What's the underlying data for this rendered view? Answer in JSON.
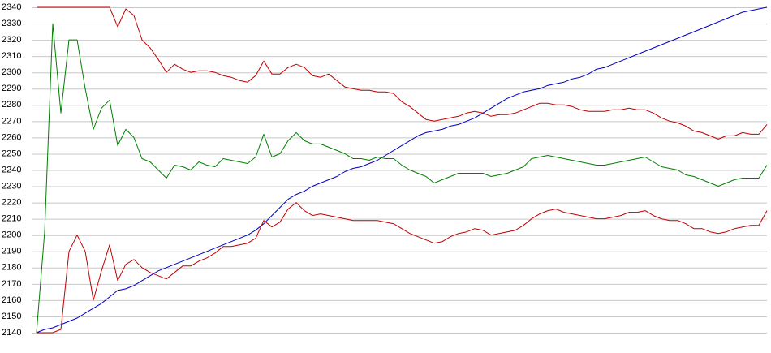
{
  "chart_data": {
    "type": "line",
    "categories": [
      null,
      null,
      null,
      null,
      null,
      null,
      null,
      null,
      null,
      null,
      null,
      null,
      null,
      null,
      null,
      null,
      null,
      null,
      null,
      null,
      null,
      null,
      null,
      null,
      null,
      null,
      null,
      null,
      null,
      null,
      null,
      null,
      null,
      null,
      null,
      null,
      null,
      null,
      null,
      null,
      null,
      null,
      null,
      null,
      null,
      null,
      null,
      null,
      null,
      null,
      null,
      null,
      null,
      null,
      null,
      null,
      null,
      null,
      null,
      null,
      null,
      null,
      null,
      null,
      null,
      null,
      null,
      null,
      null,
      null,
      null,
      null,
      null,
      null,
      null,
      null,
      null,
      null,
      null,
      null,
      null,
      null,
      null,
      null,
      null,
      null,
      null,
      null,
      null,
      null,
      null
    ],
    "series": [
      {
        "color": "#0000c0",
        "values": [
          2140,
          2142,
          2143,
          2145,
          2147,
          2149,
          2152,
          2155,
          2158,
          2162,
          2166,
          2167,
          2169,
          2172,
          2175,
          2178,
          2180,
          2182,
          2184,
          2186,
          2188,
          2190,
          2192,
          2194,
          2196,
          2198,
          2200,
          2203,
          2207,
          2212,
          2217,
          2222,
          2225,
          2227,
          2230,
          2232,
          2234,
          2236,
          2239,
          2241,
          2242,
          2244,
          2246,
          2249,
          2252,
          2255,
          2258,
          2261,
          2263,
          2264,
          2265,
          2267,
          2268,
          2270,
          2272,
          2275,
          2278,
          2281,
          2284,
          2286,
          2288,
          2289,
          2290,
          2292,
          2293,
          2294,
          2296,
          2297,
          2299,
          2302,
          2303,
          2305,
          2307,
          2309,
          2311,
          2313,
          2315,
          2317,
          2319,
          2321,
          2323,
          2325,
          2327,
          2329,
          2331,
          2333,
          2335,
          2337,
          2338,
          2339,
          2340
        ]
      },
      {
        "color": "#008000",
        "values": [
          2140,
          2202,
          2330,
          2275,
          2320,
          2320,
          2290,
          2265,
          2278,
          2283,
          2255,
          2265,
          2260,
          2247,
          2245,
          2240,
          2235,
          2243,
          2242,
          2240,
          2245,
          2243,
          2242,
          2247,
          2246,
          2245,
          2244,
          2248,
          2262,
          2248,
          2250,
          2258,
          2263,
          2258,
          2256,
          2256,
          2254,
          2252,
          2250,
          2247,
          2247,
          2246,
          2248,
          2247,
          2247,
          2243,
          2240,
          2238,
          2236,
          2232,
          2234,
          2236,
          2238,
          2238,
          2238,
          2238,
          2236,
          2237,
          2238,
          2240,
          2242,
          2247,
          2248,
          2249,
          2248,
          2247,
          2246,
          2245,
          2244,
          2243,
          2243,
          2244,
          2245,
          2246,
          2247,
          2248,
          2245,
          2242,
          2241,
          2240,
          2237,
          2236,
          2234,
          2232,
          2230,
          2232,
          2234,
          2235,
          2235,
          2235,
          2243
        ]
      },
      {
        "color": "#c00000",
        "values": [
          2340,
          2340,
          2340,
          2340,
          2340,
          2340,
          2340,
          2340,
          2340,
          2340,
          2328,
          2339,
          2335,
          2320,
          2315,
          2308,
          2300,
          2305,
          2302,
          2300,
          2301,
          2301,
          2300,
          2298,
          2297,
          2295,
          2294,
          2298,
          2307,
          2299,
          2299,
          2303,
          2305,
          2303,
          2298,
          2297,
          2299,
          2295,
          2291,
          2290,
          2289,
          2289,
          2288,
          2288,
          2287,
          2282,
          2279,
          2275,
          2271,
          2270,
          2271,
          2272,
          2273,
          2275,
          2276,
          2275,
          2273,
          2274,
          2274,
          2275,
          2277,
          2279,
          2281,
          2281,
          2280,
          2280,
          2279,
          2277,
          2276,
          2276,
          2276,
          2277,
          2277,
          2278,
          2277,
          2277,
          2275,
          2272,
          2270,
          2269,
          2267,
          2264,
          2263,
          2261,
          2259,
          2261,
          2261,
          2263,
          2262,
          2262,
          2268
        ]
      },
      {
        "color": "#c00000",
        "values": [
          2140,
          2140,
          2140,
          2142,
          2190,
          2200,
          2190,
          2160,
          2178,
          2194,
          2172,
          2182,
          2185,
          2180,
          2177,
          2175,
          2173,
          2177,
          2181,
          2181,
          2184,
          2186,
          2189,
          2193,
          2193,
          2194,
          2195,
          2198,
          2209,
          2205,
          2208,
          2216,
          2220,
          2215,
          2212,
          2213,
          2212,
          2211,
          2210,
          2209,
          2209,
          2209,
          2209,
          2208,
          2207,
          2204,
          2201,
          2199,
          2197,
          2195,
          2196,
          2199,
          2201,
          2202,
          2204,
          2203,
          2200,
          2201,
          2202,
          2203,
          2206,
          2210,
          2213,
          2215,
          2216,
          2214,
          2213,
          2212,
          2211,
          2210,
          2210,
          2211,
          2212,
          2214,
          2214,
          2215,
          2212,
          2210,
          2209,
          2209,
          2207,
          2204,
          2204,
          2202,
          2201,
          2202,
          2204,
          2205,
          2206,
          2206,
          2215
        ]
      }
    ],
    "ylim": [
      2140,
      2340
    ],
    "yticks": [
      2140,
      2150,
      2160,
      2170,
      2180,
      2190,
      2200,
      2210,
      2220,
      2230,
      2240,
      2250,
      2260,
      2270,
      2280,
      2290,
      2300,
      2310,
      2320,
      2330,
      2340
    ],
    "grid": true
  }
}
